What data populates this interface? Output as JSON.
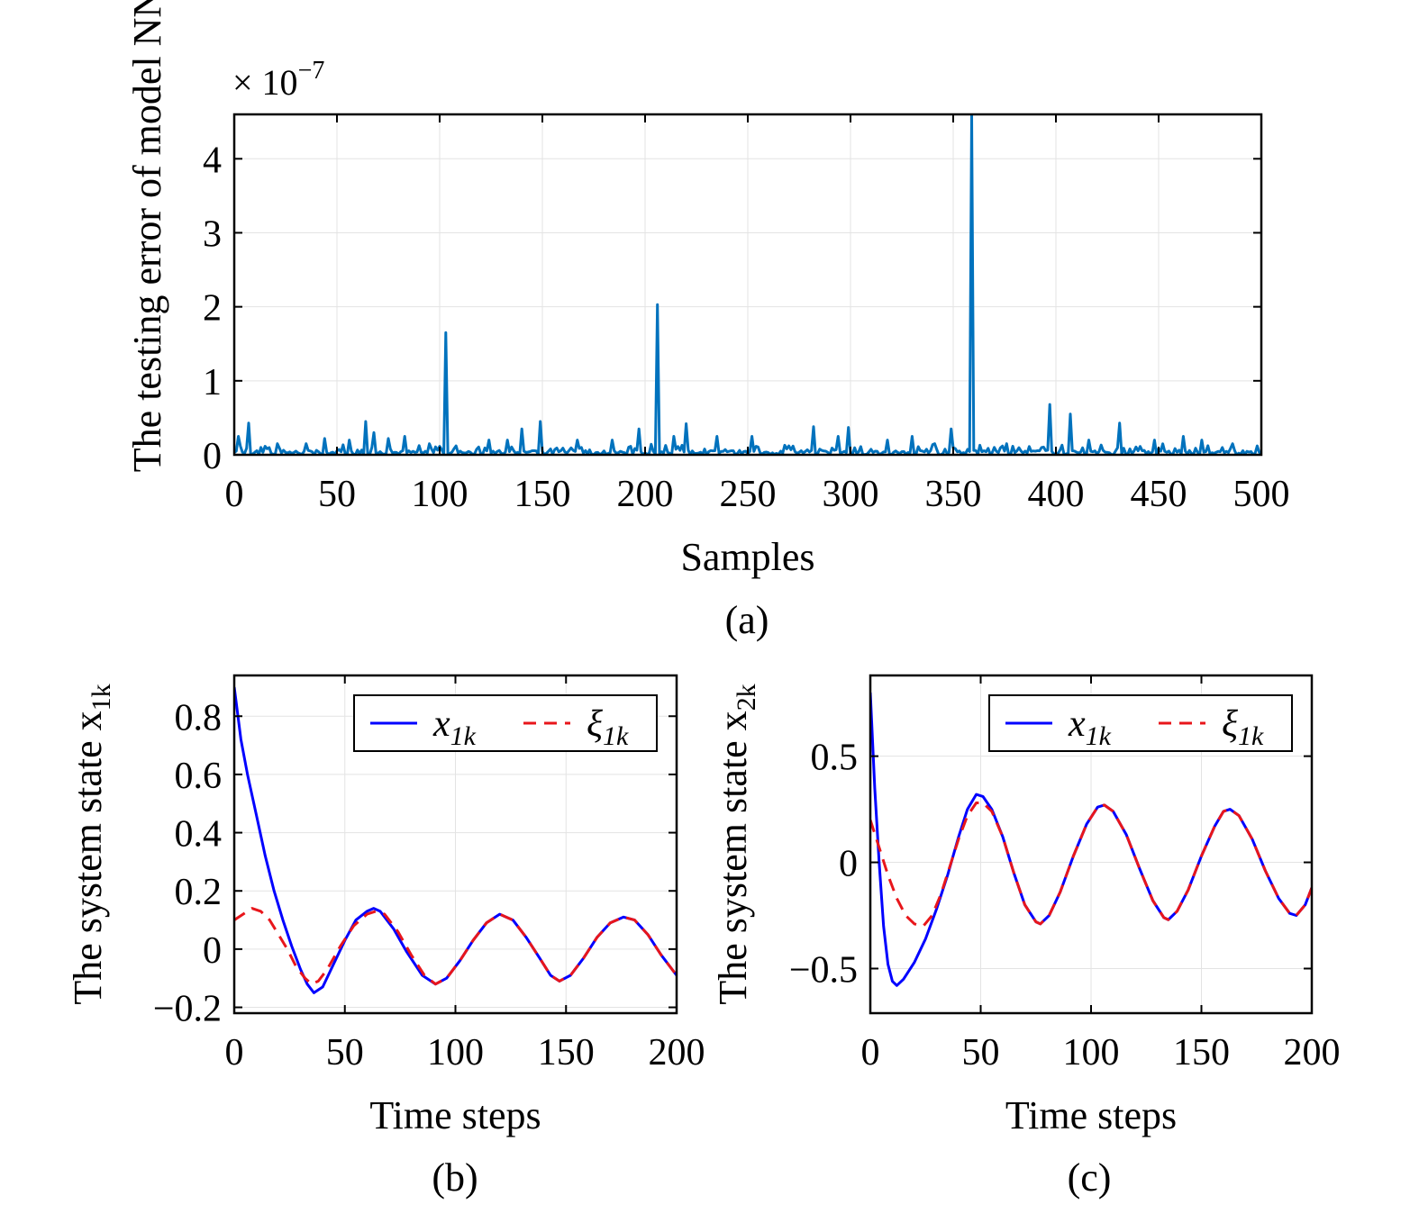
{
  "chart_data": [
    {
      "panel": "(a)",
      "type": "line",
      "xlabel": "Samples",
      "ylabel": "The testing error of model NN",
      "exponent_label": "× 10",
      "exponent_power": "−7",
      "xlim": [
        0,
        500
      ],
      "ylim": [
        0,
        4.6
      ],
      "xticks": [
        0,
        50,
        100,
        150,
        200,
        250,
        300,
        350,
        400,
        450,
        500
      ],
      "yticks": [
        0,
        1,
        2,
        3,
        4
      ],
      "grid": true,
      "color": "#0072bd",
      "spikes": [
        {
          "x": 2,
          "y": 0.25
        },
        {
          "x": 7,
          "y": 0.43
        },
        {
          "x": 21,
          "y": 0.15
        },
        {
          "x": 35,
          "y": 0.15
        },
        {
          "x": 44,
          "y": 0.22
        },
        {
          "x": 56,
          "y": 0.2
        },
        {
          "x": 64,
          "y": 0.45
        },
        {
          "x": 68,
          "y": 0.3
        },
        {
          "x": 75,
          "y": 0.22
        },
        {
          "x": 83,
          "y": 0.25
        },
        {
          "x": 95,
          "y": 0.15
        },
        {
          "x": 103,
          "y": 1.65
        },
        {
          "x": 108,
          "y": 0.12
        },
        {
          "x": 124,
          "y": 0.2
        },
        {
          "x": 133,
          "y": 0.2
        },
        {
          "x": 140,
          "y": 0.35
        },
        {
          "x": 149,
          "y": 0.45
        },
        {
          "x": 167,
          "y": 0.2
        },
        {
          "x": 184,
          "y": 0.2
        },
        {
          "x": 197,
          "y": 0.35
        },
        {
          "x": 206,
          "y": 2.03
        },
        {
          "x": 214,
          "y": 0.25
        },
        {
          "x": 220,
          "y": 0.42
        },
        {
          "x": 235,
          "y": 0.25
        },
        {
          "x": 252,
          "y": 0.25
        },
        {
          "x": 270,
          "y": 0.12
        },
        {
          "x": 282,
          "y": 0.38
        },
        {
          "x": 294,
          "y": 0.25
        },
        {
          "x": 299,
          "y": 0.37
        },
        {
          "x": 318,
          "y": 0.2
        },
        {
          "x": 330,
          "y": 0.25
        },
        {
          "x": 341,
          "y": 0.15
        },
        {
          "x": 349,
          "y": 0.35
        },
        {
          "x": 359,
          "y": 4.6
        },
        {
          "x": 376,
          "y": 0.15
        },
        {
          "x": 397,
          "y": 0.68
        },
        {
          "x": 407,
          "y": 0.55
        },
        {
          "x": 416,
          "y": 0.2
        },
        {
          "x": 431,
          "y": 0.43
        },
        {
          "x": 448,
          "y": 0.2
        },
        {
          "x": 462,
          "y": 0.25
        },
        {
          "x": 471,
          "y": 0.2
        },
        {
          "x": 486,
          "y": 0.15
        },
        {
          "x": 498,
          "y": 0.12
        }
      ],
      "baseline": 0.06,
      "noise": 0.1
    },
    {
      "panel": "(b)",
      "type": "line",
      "xlabel": "Time steps",
      "ylabel": "The system state x",
      "ylabel_sub": "1k",
      "xlim": [
        0,
        200
      ],
      "ylim": [
        -0.22,
        0.94
      ],
      "xticks": [
        0,
        50,
        100,
        150,
        200
      ],
      "yticks": [
        -0.2,
        0,
        0.2,
        0.4,
        0.6,
        0.8
      ],
      "ytick_labels": [
        "−0.2",
        "0",
        "0.2",
        "0.4",
        "0.6",
        "0.8"
      ],
      "grid": true,
      "legend": {
        "position": "top-right",
        "entries": [
          {
            "name": "x",
            "sub": "1k"
          },
          {
            "name": "ξ",
            "sub": "1k"
          }
        ]
      },
      "series": [
        {
          "style": "solid",
          "color": "#0000ff",
          "points": [
            [
              0,
              0.9
            ],
            [
              3,
              0.72
            ],
            [
              6,
              0.6
            ],
            [
              10,
              0.46
            ],
            [
              14,
              0.32
            ],
            [
              18,
              0.2
            ],
            [
              22,
              0.1
            ],
            [
              26,
              0.01
            ],
            [
              30,
              -0.07
            ],
            [
              33,
              -0.12
            ],
            [
              36,
              -0.15
            ],
            [
              40,
              -0.13
            ],
            [
              45,
              -0.05
            ],
            [
              50,
              0.03
            ],
            [
              55,
              0.1
            ],
            [
              60,
              0.13
            ],
            [
              63,
              0.14
            ],
            [
              66,
              0.13
            ],
            [
              72,
              0.07
            ],
            [
              78,
              -0.01
            ],
            [
              85,
              -0.09
            ],
            [
              91,
              -0.12
            ],
            [
              96,
              -0.1
            ],
            [
              102,
              -0.04
            ],
            [
              108,
              0.03
            ],
            [
              114,
              0.09
            ],
            [
              120,
              0.12
            ],
            [
              126,
              0.1
            ],
            [
              132,
              0.04
            ],
            [
              138,
              -0.03
            ],
            [
              143,
              -0.09
            ],
            [
              147,
              -0.11
            ],
            [
              152,
              -0.09
            ],
            [
              158,
              -0.03
            ],
            [
              164,
              0.04
            ],
            [
              170,
              0.09
            ],
            [
              176,
              0.11
            ],
            [
              181,
              0.1
            ],
            [
              187,
              0.05
            ],
            [
              193,
              -0.02
            ],
            [
              200,
              -0.09
            ]
          ]
        },
        {
          "style": "dashed",
          "color": "#e8161b",
          "points": [
            [
              0,
              0.1
            ],
            [
              4,
              0.12
            ],
            [
              8,
              0.14
            ],
            [
              12,
              0.13
            ],
            [
              16,
              0.1
            ],
            [
              20,
              0.05
            ],
            [
              24,
              0.0
            ],
            [
              28,
              -0.06
            ],
            [
              32,
              -0.1
            ],
            [
              35,
              -0.12
            ],
            [
              38,
              -0.11
            ],
            [
              42,
              -0.07
            ],
            [
              48,
              0.01
            ],
            [
              54,
              0.08
            ],
            [
              60,
              0.12
            ],
            [
              64,
              0.13
            ],
            [
              68,
              0.12
            ],
            [
              74,
              0.06
            ],
            [
              80,
              -0.02
            ],
            [
              86,
              -0.09
            ],
            [
              91,
              -0.12
            ],
            [
              96,
              -0.1
            ],
            [
              102,
              -0.04
            ],
            [
              108,
              0.03
            ],
            [
              114,
              0.09
            ],
            [
              120,
              0.12
            ],
            [
              126,
              0.1
            ],
            [
              132,
              0.04
            ],
            [
              138,
              -0.03
            ],
            [
              143,
              -0.09
            ],
            [
              147,
              -0.11
            ],
            [
              152,
              -0.09
            ],
            [
              158,
              -0.03
            ],
            [
              164,
              0.04
            ],
            [
              170,
              0.09
            ],
            [
              176,
              0.11
            ],
            [
              181,
              0.1
            ],
            [
              187,
              0.05
            ],
            [
              193,
              -0.02
            ],
            [
              200,
              -0.09
            ]
          ]
        }
      ]
    },
    {
      "panel": "(c)",
      "type": "line",
      "xlabel": "Time steps",
      "ylabel": "The system state x",
      "ylabel_sub": "2k",
      "xlim": [
        0,
        200
      ],
      "ylim": [
        -0.71,
        0.88
      ],
      "xticks": [
        0,
        50,
        100,
        150,
        200
      ],
      "yticks": [
        -0.5,
        0,
        0.5
      ],
      "ytick_labels": [
        "−0.5",
        "0",
        "0.5"
      ],
      "grid": true,
      "legend": {
        "position": "top-right",
        "entries": [
          {
            "name": "x",
            "sub": "1k"
          },
          {
            "name": "ξ",
            "sub": "1k"
          }
        ]
      },
      "series": [
        {
          "style": "solid",
          "color": "#0000ff",
          "points": [
            [
              0,
              0.8
            ],
            [
              2,
              0.35
            ],
            [
              4,
              0.0
            ],
            [
              6,
              -0.3
            ],
            [
              8,
              -0.48
            ],
            [
              10,
              -0.56
            ],
            [
              12,
              -0.58
            ],
            [
              15,
              -0.55
            ],
            [
              20,
              -0.47
            ],
            [
              25,
              -0.36
            ],
            [
              30,
              -0.22
            ],
            [
              35,
              -0.06
            ],
            [
              40,
              0.12
            ],
            [
              44,
              0.25
            ],
            [
              48,
              0.32
            ],
            [
              51,
              0.31
            ],
            [
              55,
              0.25
            ],
            [
              60,
              0.12
            ],
            [
              65,
              -0.05
            ],
            [
              70,
              -0.2
            ],
            [
              75,
              -0.28
            ],
            [
              77,
              -0.29
            ],
            [
              81,
              -0.25
            ],
            [
              86,
              -0.14
            ],
            [
              92,
              0.03
            ],
            [
              98,
              0.18
            ],
            [
              103,
              0.26
            ],
            [
              106,
              0.27
            ],
            [
              110,
              0.24
            ],
            [
              116,
              0.13
            ],
            [
              122,
              -0.03
            ],
            [
              128,
              -0.18
            ],
            [
              133,
              -0.26
            ],
            [
              135,
              -0.27
            ],
            [
              139,
              -0.23
            ],
            [
              144,
              -0.13
            ],
            [
              150,
              0.03
            ],
            [
              156,
              0.17
            ],
            [
              160,
              0.24
            ],
            [
              163,
              0.25
            ],
            [
              167,
              0.22
            ],
            [
              173,
              0.11
            ],
            [
              179,
              -0.04
            ],
            [
              185,
              -0.17
            ],
            [
              190,
              -0.24
            ],
            [
              193,
              -0.25
            ],
            [
              197,
              -0.2
            ],
            [
              200,
              -0.12
            ]
          ]
        },
        {
          "style": "dashed",
          "color": "#e8161b",
          "points": [
            [
              0,
              0.2
            ],
            [
              4,
              0.07
            ],
            [
              8,
              -0.06
            ],
            [
              12,
              -0.17
            ],
            [
              16,
              -0.25
            ],
            [
              20,
              -0.29
            ],
            [
              24,
              -0.3
            ],
            [
              28,
              -0.25
            ],
            [
              32,
              -0.15
            ],
            [
              36,
              -0.02
            ],
            [
              40,
              0.11
            ],
            [
              44,
              0.22
            ],
            [
              48,
              0.28
            ],
            [
              51,
              0.28
            ],
            [
              55,
              0.24
            ],
            [
              60,
              0.12
            ],
            [
              65,
              -0.05
            ],
            [
              70,
              -0.2
            ],
            [
              75,
              -0.28
            ],
            [
              77,
              -0.29
            ],
            [
              81,
              -0.25
            ],
            [
              86,
              -0.14
            ],
            [
              92,
              0.03
            ],
            [
              98,
              0.18
            ],
            [
              103,
              0.26
            ],
            [
              106,
              0.27
            ],
            [
              110,
              0.24
            ],
            [
              116,
              0.13
            ],
            [
              122,
              -0.03
            ],
            [
              128,
              -0.18
            ],
            [
              133,
              -0.26
            ],
            [
              135,
              -0.27
            ],
            [
              139,
              -0.23
            ],
            [
              144,
              -0.13
            ],
            [
              150,
              0.03
            ],
            [
              156,
              0.17
            ],
            [
              160,
              0.24
            ],
            [
              163,
              0.25
            ],
            [
              167,
              0.22
            ],
            [
              173,
              0.11
            ],
            [
              179,
              -0.04
            ],
            [
              185,
              -0.17
            ],
            [
              190,
              -0.24
            ],
            [
              193,
              -0.25
            ],
            [
              197,
              -0.2
            ],
            [
              200,
              -0.12
            ]
          ]
        }
      ]
    }
  ]
}
